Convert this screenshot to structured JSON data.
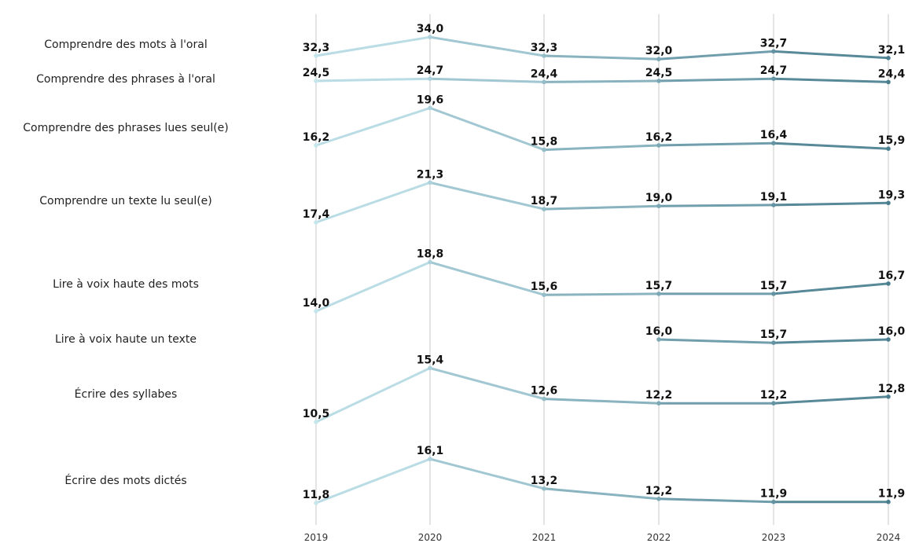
{
  "chart_data": {
    "type": "line",
    "title": "",
    "xlabel": "",
    "ylabel": "",
    "categories": [
      "2019",
      "2020",
      "2021",
      "2022",
      "2023",
      "2024"
    ],
    "grid": "vertical",
    "colors": {
      "start": "#c6e6ee",
      "end": "#4b7f90"
    },
    "series": [
      {
        "name": "Comprendre des mots à l'oral",
        "values": [
          32.3,
          34.0,
          32.3,
          32.0,
          32.7,
          32.1
        ],
        "labels": [
          "32,3",
          "34,0",
          "32,3",
          "32,0",
          "32,7",
          "32,1"
        ]
      },
      {
        "name": "Comprendre des phrases à l'oral",
        "values": [
          24.5,
          24.7,
          24.4,
          24.5,
          24.7,
          24.4
        ],
        "labels": [
          "24,5",
          "24,7",
          "24,4",
          "24,5",
          "24,7",
          "24,4"
        ]
      },
      {
        "name": "Comprendre des phrases lues seul(e)",
        "values": [
          16.2,
          19.6,
          15.8,
          16.2,
          16.4,
          15.9
        ],
        "labels": [
          "16,2",
          "19,6",
          "15,8",
          "16,2",
          "16,4",
          "15,9"
        ]
      },
      {
        "name": "Comprendre un texte lu seul(e)",
        "values": [
          17.4,
          21.3,
          18.7,
          19.0,
          19.1,
          19.3
        ],
        "labels": [
          "17,4",
          "21,3",
          "18,7",
          "19,0",
          "19,1",
          "19,3"
        ]
      },
      {
        "name": "Lire à voix haute des mots",
        "values": [
          14.0,
          18.8,
          15.6,
          15.7,
          15.7,
          16.7
        ],
        "labels": [
          "14,0",
          "18,8",
          "15,6",
          "15,7",
          "15,7",
          "16,7"
        ]
      },
      {
        "name": "Lire à voix haute un texte",
        "values": [
          null,
          null,
          null,
          16.0,
          15.7,
          16.0
        ],
        "labels": [
          "",
          "",
          "",
          "16,0",
          "15,7",
          "16,0"
        ]
      },
      {
        "name": "Écrire des syllabes",
        "values": [
          10.5,
          15.4,
          12.6,
          12.2,
          12.2,
          12.8
        ],
        "labels": [
          "10,5",
          "15,4",
          "12,6",
          "12,2",
          "12,2",
          "12,8"
        ]
      },
      {
        "name": "Écrire des mots dictés",
        "values": [
          11.8,
          16.1,
          13.2,
          12.2,
          11.9,
          11.9
        ],
        "labels": [
          "11,8",
          "16,1",
          "13,2",
          "12,2",
          "11,9",
          "11,9"
        ]
      }
    ]
  }
}
